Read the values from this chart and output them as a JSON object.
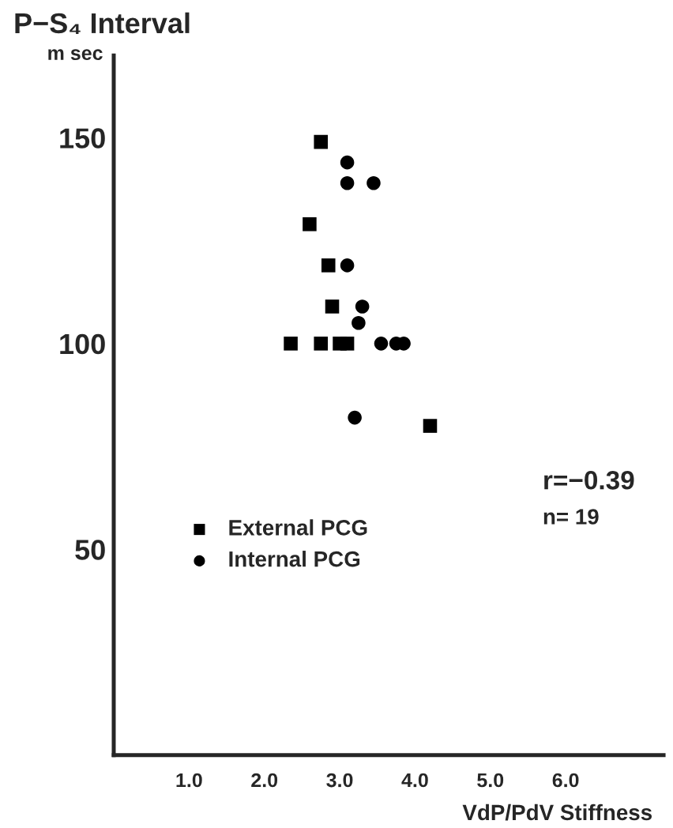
{
  "chart_data": {
    "type": "scatter",
    "ylabel": "P−S₄ Interval",
    "xlabel": "VdP/PdV Stiffness",
    "annotations": [
      "m sec",
      "r=−0.39",
      "n= 19"
    ],
    "xlim": [
      0,
      7.3
    ],
    "ylim": [
      0,
      170
    ],
    "xticks": [
      {
        "value": 1,
        "label": "1.0"
      },
      {
        "value": 2,
        "label": "2.0"
      },
      {
        "value": 3,
        "label": "3.0"
      },
      {
        "value": 4,
        "label": "4.0"
      },
      {
        "value": 5,
        "label": "5.0"
      },
      {
        "value": 6,
        "label": "6.0"
      }
    ],
    "yticks": [
      50,
      100,
      150
    ],
    "legend": "left",
    "grid": false,
    "series": [
      {
        "name": "External PCG",
        "color": "#000000",
        "marker": "square",
        "x": [
          2.75,
          2.6,
          2.85,
          2.9,
          2.35,
          2.75,
          3.0,
          3.1,
          4.2
        ],
        "values": [
          149,
          129,
          119,
          109,
          100,
          100,
          100,
          100,
          80
        ]
      },
      {
        "name": "Internal PCG",
        "color": "#000000",
        "marker": "circle",
        "x": [
          3.1,
          3.1,
          3.45,
          3.1,
          3.3,
          3.25,
          3.55,
          3.75,
          3.85,
          3.2
        ],
        "values": [
          144,
          139,
          139,
          119,
          109,
          105,
          100,
          100,
          100,
          82
        ]
      }
    ]
  }
}
